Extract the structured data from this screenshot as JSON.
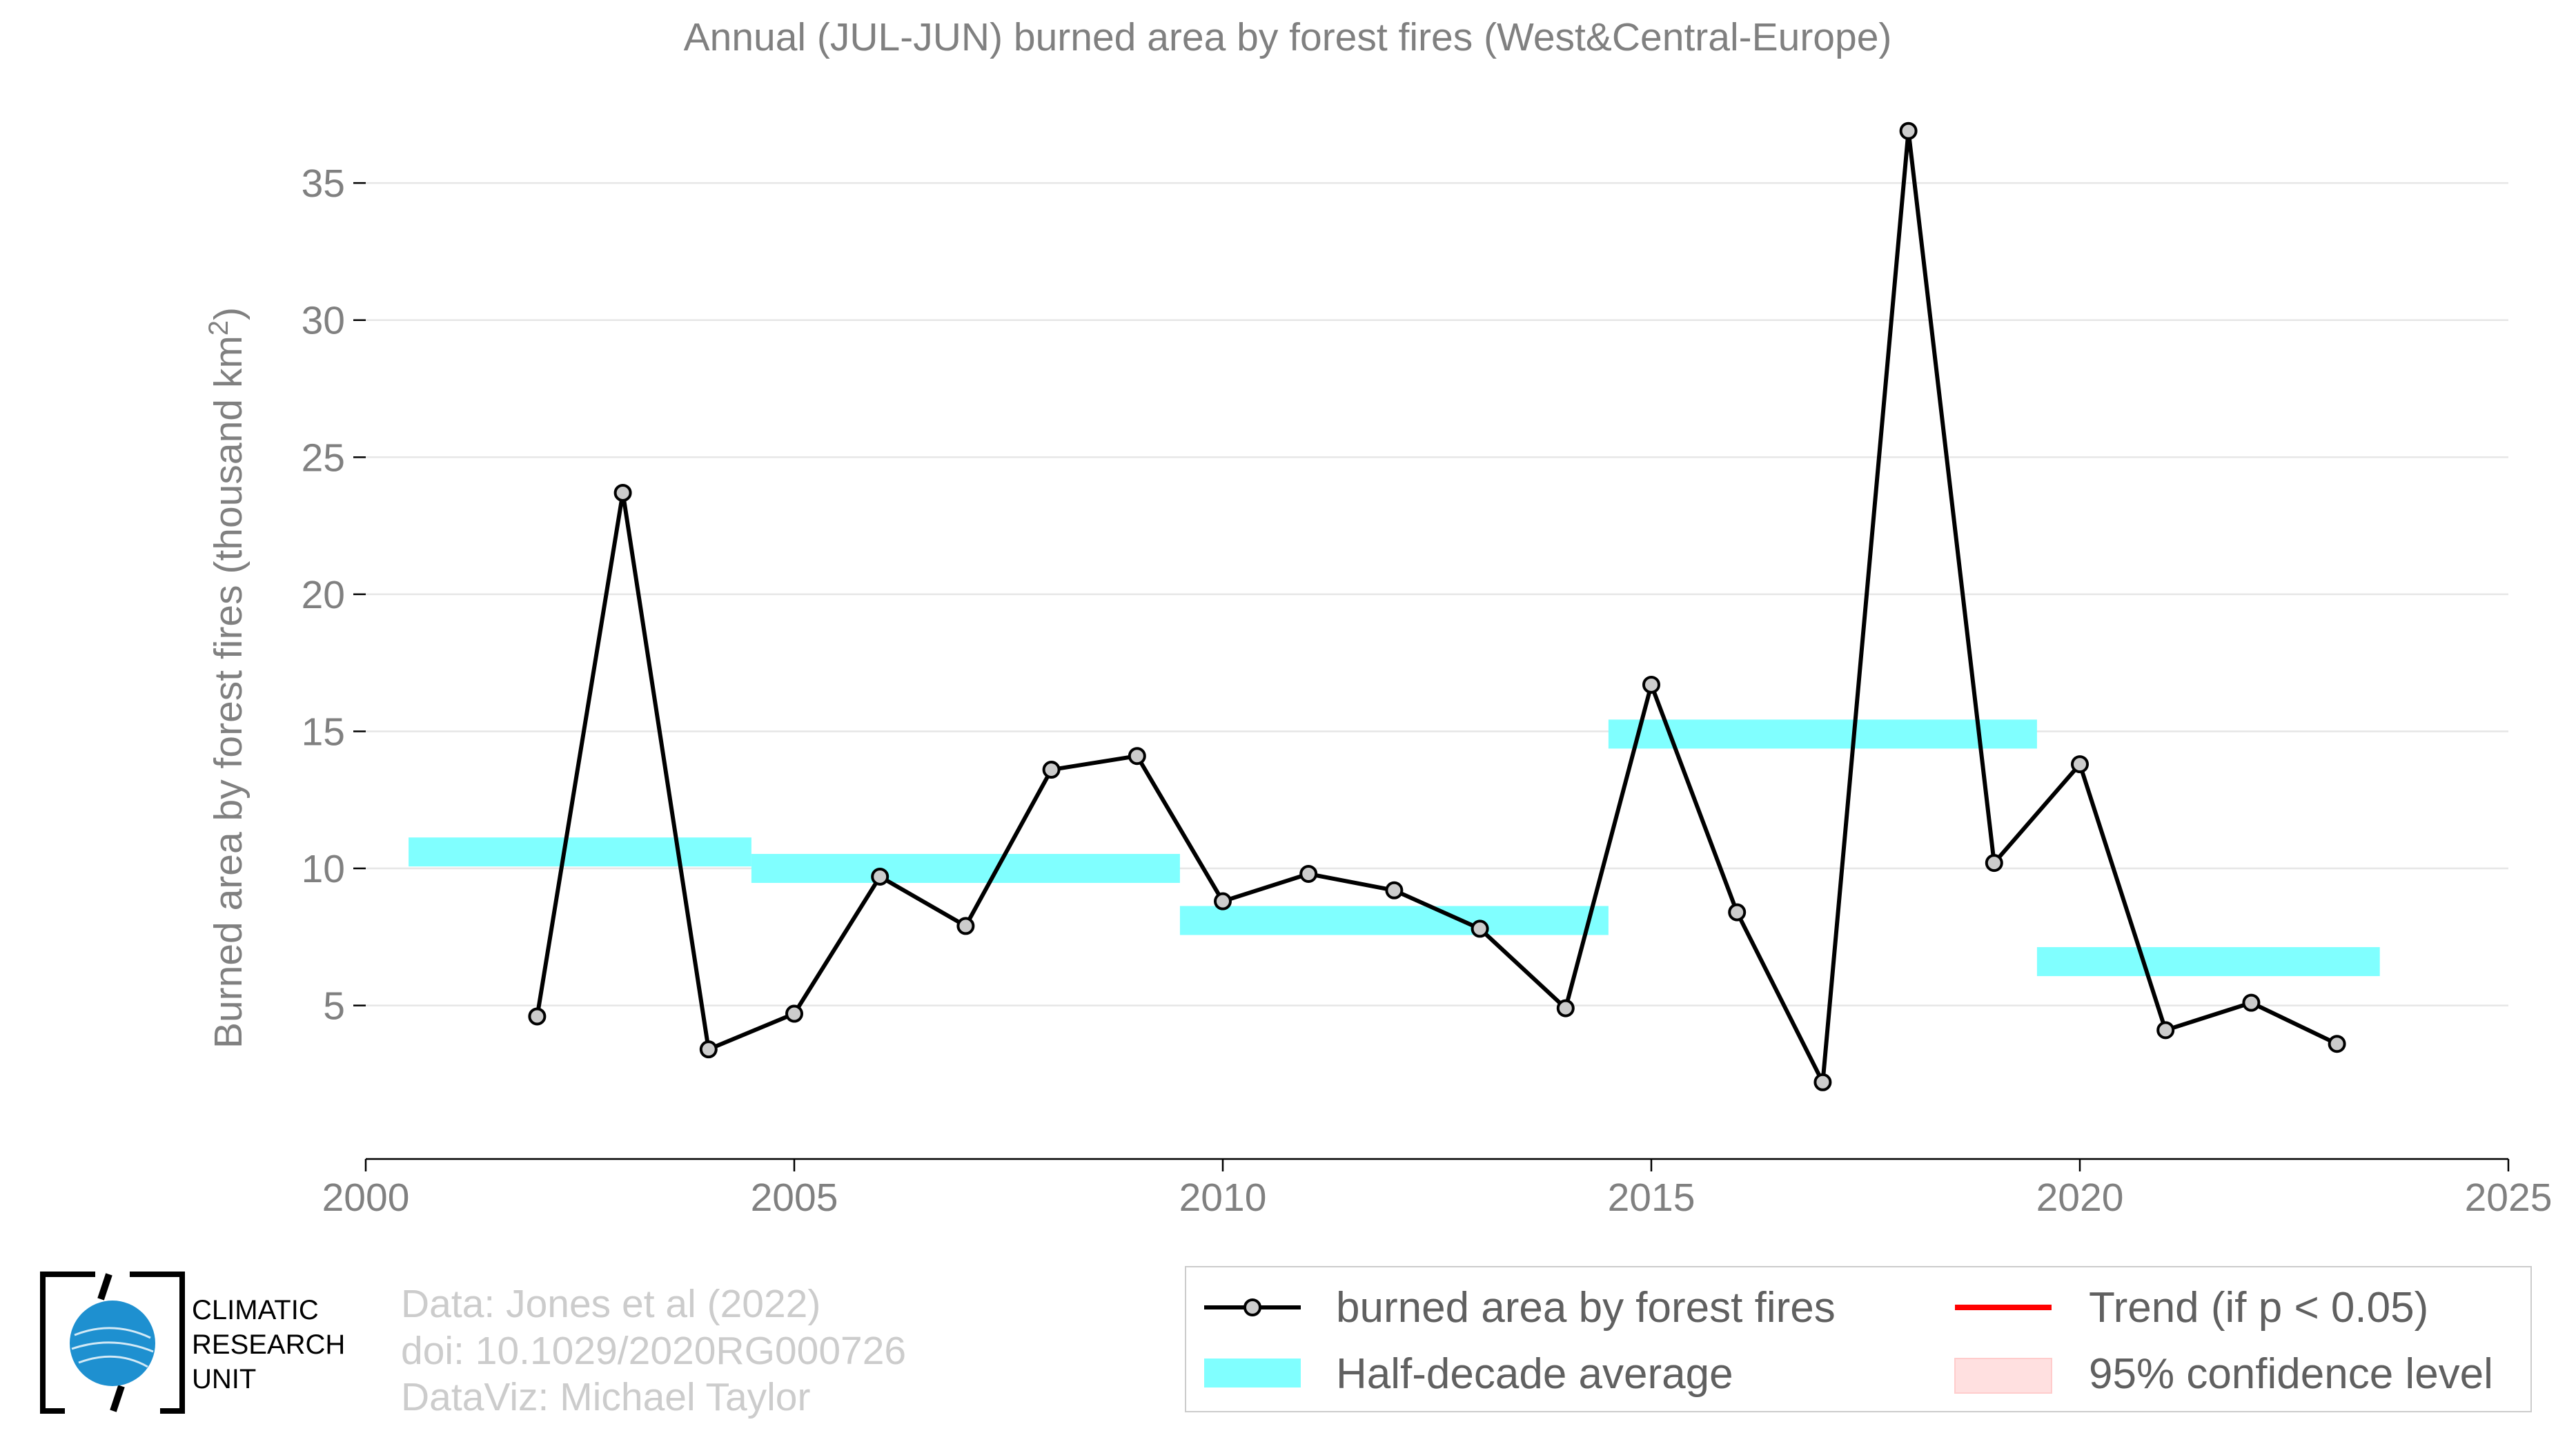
{
  "chart_data": {
    "type": "line",
    "title": "Annual (JUL-JUN) burned area by forest fires (West&Central-Europe)",
    "ylabel": "Burned area by forest fires (thousand km²)",
    "xlabel": "",
    "xlim": [
      2000,
      2025
    ],
    "ylim": [
      -0.6,
      37.9
    ],
    "x_ticks": [
      2000,
      2005,
      2010,
      2015,
      2020,
      2025
    ],
    "y_ticks": [
      5,
      10,
      15,
      20,
      25,
      30,
      35
    ],
    "grid": "horizontal",
    "series": [
      {
        "name": "burned area by forest fires",
        "color": "#000000",
        "marker_fill": "#cccccc",
        "x": [
          2002,
          2003,
          2004,
          2005,
          2006,
          2007,
          2008,
          2009,
          2010,
          2011,
          2012,
          2013,
          2014,
          2015,
          2016,
          2017,
          2018,
          2019,
          2020,
          2021,
          2022,
          2023
        ],
        "y": [
          4.6,
          23.7,
          3.4,
          4.7,
          9.7,
          7.9,
          13.6,
          14.1,
          8.8,
          9.8,
          9.2,
          7.8,
          4.9,
          16.7,
          8.4,
          2.2,
          36.9,
          10.2,
          13.8,
          4.1,
          5.1,
          3.6
        ]
      }
    ],
    "half_decade_average": {
      "name": "Half-decade average",
      "color": "#80ffff",
      "segments": [
        {
          "x0": 2000.5,
          "x1": 2004.5,
          "y": 10.6
        },
        {
          "x0": 2004.5,
          "x1": 2009.5,
          "y": 10.0
        },
        {
          "x0": 2009.5,
          "x1": 2014.5,
          "y": 8.1
        },
        {
          "x0": 2014.5,
          "x1": 2019.5,
          "y": 14.9
        },
        {
          "x0": 2019.5,
          "x1": 2023.5,
          "y": 6.6
        }
      ]
    },
    "legend": {
      "placement": "bottom-right",
      "entries": [
        {
          "label": "burned area by forest fires",
          "color": "#000000"
        },
        {
          "label": "Trend (if p < 0.05)",
          "color": "#ff0000"
        },
        {
          "label": "Half-decade average",
          "color": "#80ffff"
        },
        {
          "label": "95% confidence level",
          "color": "#ffe0e0"
        }
      ]
    }
  },
  "credits": {
    "data": "Data: Jones et al (2022)",
    "doi": "doi: 10.1029/2020RG000726",
    "dataviz": "DataViz: Michael Taylor"
  },
  "logo": {
    "line1": "CLIMATIC",
    "line2": "RESEARCH",
    "line3": "UNIT",
    "globe_color": "#1e90d0"
  }
}
